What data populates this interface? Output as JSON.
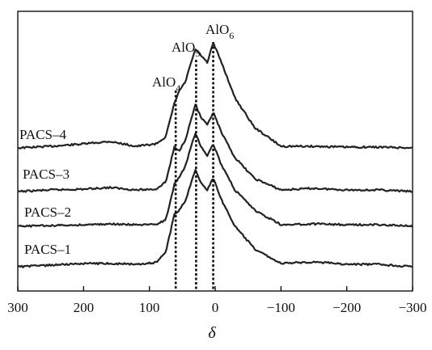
{
  "chart_data": {
    "type": "line",
    "title": "",
    "xlabel": "δ",
    "ylabel": "",
    "xlim": [
      300,
      -300
    ],
    "x_reversed": true,
    "xticks": [
      300,
      200,
      100,
      0,
      -100,
      -200,
      -300
    ],
    "xtick_labels": [
      "300",
      "200",
      "100",
      "0",
      "−100",
      "−200",
      "−300"
    ],
    "y_ticks_shown": false,
    "grid": false,
    "legend": "none",
    "peak_markers": [
      {
        "x": 60,
        "label": "AlO",
        "sub": "4"
      },
      {
        "x": 29,
        "label": "AlO",
        "sub": "5"
      },
      {
        "x": 3,
        "label": "AlO",
        "sub": "6"
      }
    ],
    "series": [
      {
        "name": "PACS–4",
        "x": [
          300,
          250,
          200,
          160,
          120,
          90,
          75,
          62,
          55,
          45,
          38,
          30,
          22,
          12,
          3,
          -10,
          -30,
          -60,
          -100,
          -150,
          -200,
          -250,
          -300
        ],
        "y": [
          0,
          0.02,
          0.05,
          0.08,
          0.02,
          0.05,
          0.14,
          0.55,
          0.7,
          0.82,
          1.02,
          1.22,
          1.15,
          1.05,
          1.3,
          1.05,
          0.62,
          0.25,
          0.02,
          0.02,
          0.01,
          0.01,
          0
        ]
      },
      {
        "name": "PACS–3",
        "x": [
          300,
          250,
          200,
          160,
          120,
          90,
          75,
          62,
          55,
          45,
          38,
          30,
          22,
          12,
          3,
          -10,
          -30,
          -60,
          -100,
          -150,
          -200,
          -250,
          -300
        ],
        "y": [
          0,
          0.02,
          0.03,
          0.05,
          0.02,
          0.03,
          0.12,
          0.55,
          0.5,
          0.65,
          0.85,
          1.08,
          0.92,
          0.82,
          0.98,
          0.72,
          0.42,
          0.16,
          0.02,
          0.04,
          0.02,
          0.02,
          0
        ]
      },
      {
        "name": "PACS–2",
        "x": [
          300,
          250,
          200,
          160,
          120,
          90,
          75,
          62,
          55,
          45,
          38,
          30,
          22,
          12,
          3,
          -10,
          -30,
          -60,
          -100,
          -150,
          -200,
          -250,
          -300
        ],
        "y": [
          0,
          0.01,
          0.02,
          0.03,
          0.02,
          0.02,
          0.08,
          0.52,
          0.6,
          0.75,
          0.95,
          1.15,
          1.0,
          0.88,
          1.02,
          0.75,
          0.45,
          0.2,
          0.02,
          0.03,
          0.02,
          0.02,
          0
        ]
      },
      {
        "name": "PACS–1",
        "x": [
          300,
          250,
          200,
          160,
          120,
          90,
          75,
          62,
          55,
          45,
          38,
          30,
          22,
          12,
          3,
          -10,
          -30,
          -60,
          -100,
          -150,
          -200,
          -250,
          -300
        ],
        "y": [
          0,
          0.02,
          0.04,
          0.04,
          0.03,
          0.05,
          0.18,
          0.65,
          0.7,
          0.82,
          1.0,
          1.2,
          1.05,
          0.95,
          1.1,
          0.82,
          0.5,
          0.22,
          0.04,
          0.06,
          0.03,
          0.03,
          0
        ]
      }
    ]
  }
}
